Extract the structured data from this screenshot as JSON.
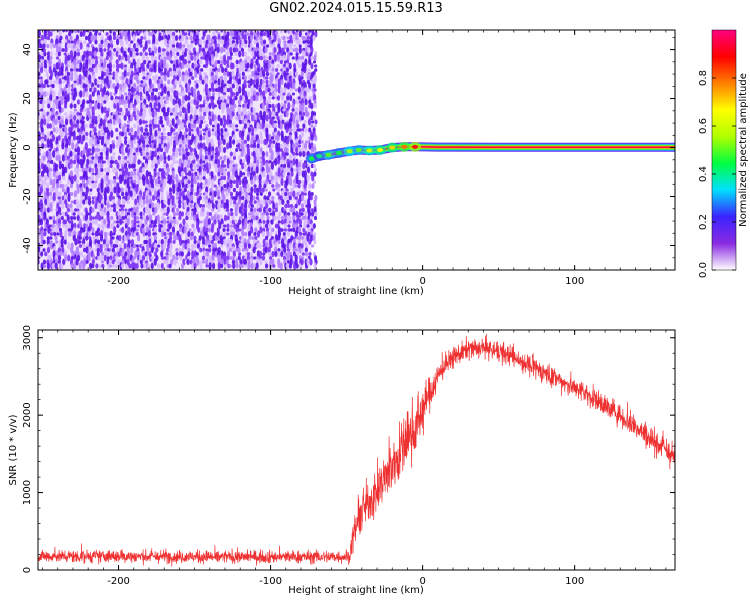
{
  "title": "GN02.2024.015.15.59.R13",
  "chart_data": [
    {
      "type": "heatmap",
      "xlabel": "Height of straight line (km)",
      "ylabel": "Frequency (Hz)",
      "xlim": [
        -253,
        166
      ],
      "ylim": [
        -50,
        48
      ],
      "x_ticks": [
        -200,
        -100,
        0,
        100
      ],
      "y_ticks": [
        -40,
        -20,
        0,
        20,
        40
      ],
      "noise_region_x": [
        -253,
        -73
      ],
      "noise_region_y": [
        -50,
        48
      ],
      "noise_color_levels": [
        "#f0e4ff",
        "#d6b8ff",
        "#b07cff",
        "#7a2ef5",
        "#5a10e6"
      ],
      "signal_trace": [
        {
          "x": -73,
          "y": -4.5,
          "amplitude": 0.45
        },
        {
          "x": -68,
          "y": -3.5,
          "amplitude": 0.4
        },
        {
          "x": -62,
          "y": -3,
          "amplitude": 0.5
        },
        {
          "x": -55,
          "y": -2.2,
          "amplitude": 0.45
        },
        {
          "x": -48,
          "y": -1.5,
          "amplitude": 0.55
        },
        {
          "x": -42,
          "y": -1.0,
          "amplitude": 0.5
        },
        {
          "x": -35,
          "y": -1.2,
          "amplitude": 0.6
        },
        {
          "x": -28,
          "y": -1.0,
          "amplitude": 0.65
        },
        {
          "x": -20,
          "y": 0.0,
          "amplitude": 0.7
        },
        {
          "x": -12,
          "y": 0.3,
          "amplitude": 0.8
        },
        {
          "x": -5,
          "y": 0.3,
          "amplitude": 0.9
        },
        {
          "x": 10,
          "y": 0.2,
          "amplitude": 1.0
        },
        {
          "x": 50,
          "y": 0.1,
          "amplitude": 1.0
        },
        {
          "x": 100,
          "y": 0.1,
          "amplitude": 1.0
        },
        {
          "x": 166,
          "y": 0.1,
          "amplitude": 1.0
        }
      ],
      "colorbar": {
        "label": "Normalized spectral amplitude",
        "range": [
          0,
          1
        ],
        "ticks": [
          "0.0",
          "0.2",
          "0.4",
          "0.6",
          "0.8"
        ],
        "tick_values": [
          0.0,
          0.2,
          0.4,
          0.6,
          0.8
        ],
        "gradient": [
          "#ffffff",
          "#8a2be2",
          "#3b22ff",
          "#00e0ff",
          "#00ff40",
          "#b0ff00",
          "#ffff00",
          "#ff8000",
          "#ff0000",
          "#ff0080"
        ]
      }
    },
    {
      "type": "line",
      "xlabel": "Height of straight line (km)",
      "ylabel": "SNR (10 * v/v)",
      "xlim": [
        -253,
        166
      ],
      "ylim": [
        0,
        3100
      ],
      "x_ticks": [
        -200,
        -100,
        0,
        100
      ],
      "y_ticks": [
        0,
        1000,
        2000,
        3000
      ],
      "series_color": "#ee3030",
      "envelope": {
        "x": [
          -253,
          -200,
          -150,
          -100,
          -60,
          -48,
          -45,
          -40,
          -35,
          -30,
          -25,
          -20,
          -15,
          -10,
          -5,
          0,
          5,
          10,
          15,
          20,
          25,
          30,
          35,
          40,
          50,
          60,
          70,
          80,
          90,
          100,
          110,
          120,
          130,
          140,
          150,
          160,
          166
        ],
        "mean": [
          180,
          175,
          170,
          170,
          170,
          175,
          500,
          750,
          900,
          1000,
          1200,
          1350,
          1500,
          1700,
          1850,
          2050,
          2300,
          2500,
          2650,
          2750,
          2800,
          2850,
          2850,
          2870,
          2820,
          2750,
          2650,
          2550,
          2450,
          2350,
          2250,
          2120,
          2000,
          1850,
          1700,
          1550,
          1450
        ],
        "spread": [
          150,
          150,
          150,
          150,
          150,
          150,
          400,
          500,
          500,
          550,
          600,
          650,
          700,
          700,
          650,
          550,
          400,
          300,
          250,
          250,
          250,
          250,
          250,
          250,
          250,
          250,
          250,
          250,
          250,
          260,
          260,
          270,
          280,
          290,
          300,
          320,
          330
        ]
      }
    }
  ]
}
